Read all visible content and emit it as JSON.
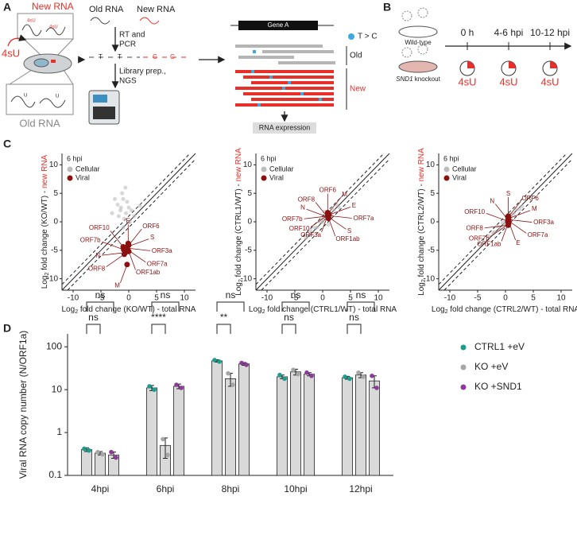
{
  "panel_labels": [
    "A",
    "B",
    "C",
    "D"
  ],
  "panel_a": {
    "new_rna": "New RNA",
    "metabolic_label": "4sU",
    "inset_marks": [
      "4sU",
      "4sU",
      "U",
      "U"
    ],
    "old_rna": "Old RNA",
    "top_old": "Old RNA",
    "top_new": "New RNA",
    "step1": [
      "RT and",
      "PCR"
    ],
    "step2": [
      "Library prep.,",
      "NGS"
    ],
    "seq_old": "T",
    "seq_new": "C",
    "gene": "Gene A",
    "mutation_legend": "T > C",
    "read_groups": [
      "Old",
      "New"
    ],
    "output": "RNA expression"
  },
  "panel_b": {
    "conditions": [
      {
        "label": "Wild-type"
      },
      {
        "gene": "SND1",
        "label": "knockout"
      }
    ],
    "timepoints": [
      "0 h",
      "4-6 hpi",
      "10-12 hpi"
    ],
    "pulse": "4sU"
  },
  "chart_data": [
    {
      "type": "scatter",
      "title": "6 hpi",
      "xlabel": {
        "base": "Log",
        "sub": "2",
        "text": " fold change (KO/WT) - total RNA"
      },
      "ylabel": {
        "base": "Log",
        "sub": "2",
        "text": " fold change (KO/WT) - ",
        "highlight": "new RNA",
        "highlight_color": "#e8302a"
      },
      "xlim": [
        -12,
        12
      ],
      "ylim": [
        -12,
        12
      ],
      "xticks": [
        -10,
        -5,
        0,
        5,
        10
      ],
      "yticks": [
        -10,
        -5,
        0,
        5,
        10
      ],
      "diagonal": true,
      "band_offset": 1,
      "legend": "top-left",
      "series": [
        {
          "name": "Cellular",
          "color": "#bdbdbd",
          "x": [
            -2,
            -1.5,
            -1,
            -0.5,
            0,
            -1.2,
            -0.8,
            -1.8,
            -0.3,
            0.5,
            -2.5,
            -1,
            1,
            -0.6,
            -1.4,
            0.2,
            -3,
            2
          ],
          "values": [
            3,
            2,
            4,
            1.5,
            2.5,
            5,
            0.5,
            1,
            3.5,
            2,
            4,
            -1,
            1,
            6,
            2.5,
            0,
            1.5,
            2.8
          ]
        },
        {
          "name": "Viral",
          "color": "#8b1010",
          "x": [
            -0.1,
            0,
            -0.3,
            -0.4,
            -0.2,
            0,
            -0.3,
            -0.8,
            -0.6,
            -0.9,
            -1
          ],
          "values": [
            -3.8,
            -4.1,
            -4.4,
            -4.6,
            -4.9,
            -5.2,
            -7.5,
            -5.7,
            -5.4,
            -4.9,
            -4.4
          ],
          "point_labels": [
            "E",
            "ORF6",
            "S",
            "ORF3a",
            "ORF7a",
            "ORF1ab",
            "M",
            "ORF8",
            "N",
            "ORF7b",
            "ORF10"
          ]
        }
      ]
    },
    {
      "type": "scatter",
      "title": "6 hpi",
      "xlabel": {
        "base": "Log",
        "sub": "2",
        "text": " fold change (CTRL1/WT) - total RNA"
      },
      "ylabel": {
        "base": "Log",
        "sub": "2",
        "text": " fold change (CTRL1/WT) - ",
        "highlight": "new RNA",
        "highlight_color": "#e8302a"
      },
      "xlim": [
        -12,
        12
      ],
      "ylim": [
        -12,
        12
      ],
      "xticks": [
        -10,
        -5,
        0,
        5,
        10
      ],
      "yticks": [
        -10,
        -5,
        0,
        5,
        10
      ],
      "diagonal": true,
      "band_offset": 1,
      "legend": "top-left",
      "series": [
        {
          "name": "Cellular",
          "color": "#bdbdbd",
          "x": [
            -2,
            -1,
            0,
            1,
            2,
            -1.5,
            0.5,
            1.5,
            -0.5,
            3,
            -3,
            0,
            1,
            2.5,
            -2.2,
            0.3
          ],
          "values": [
            -2,
            -1,
            0,
            1,
            2,
            -1,
            0.8,
            1.2,
            0,
            2.5,
            -2.8,
            0.5,
            -0.5,
            3,
            -1.5,
            1.8
          ]
        },
        {
          "name": "Viral",
          "color": "#8b1010",
          "x": [
            0.9,
            1,
            1.1,
            1,
            0.95,
            1.05,
            1,
            1.1,
            0.9,
            1,
            1.05
          ],
          "values": [
            1.6,
            1.5,
            1.2,
            1.1,
            0.9,
            0.7,
            1.4,
            1.3,
            1,
            0.8,
            0.6
          ],
          "point_labels": [
            "ORF6",
            "M",
            "E",
            "ORF7a",
            "S",
            "ORF1ab",
            "ORF3a",
            "ORF10",
            "ORF7b",
            "N",
            "ORF8"
          ]
        }
      ]
    },
    {
      "type": "scatter",
      "title": "6 hpi",
      "xlabel": {
        "base": "Log",
        "sub": "2",
        "text": " fold change (CTRL2/WT) - total RNA"
      },
      "ylabel": {
        "base": "Log",
        "sub": "2",
        "text": " fold change (CTRL2/WT) - ",
        "highlight": "new RNA",
        "highlight_color": "#e8302a"
      },
      "xlim": [
        -12,
        12
      ],
      "ylim": [
        -12,
        12
      ],
      "xticks": [
        -10,
        -5,
        0,
        5,
        10
      ],
      "yticks": [
        -10,
        -5,
        0,
        5,
        10
      ],
      "diagonal": true,
      "band_offset": 1,
      "legend": "top-left",
      "series": [
        {
          "name": "Cellular",
          "color": "#bdbdbd",
          "x": [
            -2,
            -1,
            0,
            1,
            2,
            -1.5,
            0.5,
            1.5,
            -0.5,
            3,
            -3,
            0,
            1,
            2.5,
            -2.2,
            0.3
          ],
          "values": [
            -1.8,
            -1.2,
            0.2,
            0.8,
            2.2,
            -0.8,
            0.6,
            1.4,
            -0.2,
            2.7,
            -2.5,
            -0.4,
            1.3,
            2.2,
            -2,
            0.9
          ]
        },
        {
          "name": "Viral",
          "color": "#8b1010",
          "x": [
            0.5,
            0.45,
            0.55,
            0.5,
            0.5,
            0.6,
            0.5,
            0.55,
            0.5,
            0.45,
            0.5
          ],
          "values": [
            1,
            0.8,
            0.6,
            0.4,
            0.2,
            0,
            -0.2,
            -0.4,
            -0.6,
            0.1,
            0.3
          ],
          "point_labels": [
            "S",
            "ORF6",
            "M",
            "ORF3a",
            "ORF7a",
            "E",
            "ORF1ab",
            "ORF7b",
            "ORF8",
            "ORF10",
            "N"
          ]
        }
      ]
    },
    {
      "type": "bar",
      "ylabel": "Viral RNA copy number (N/ORF1a)",
      "categories": [
        "4hpi",
        "6hpi",
        "8hpi",
        "10hpi",
        "12hpi"
      ],
      "log_scale": true,
      "ylim": [
        0.1,
        200
      ],
      "yticks": [
        0.1,
        1,
        10,
        100
      ],
      "bar_fill": "#d9d9d9",
      "legend": "right",
      "series": [
        {
          "name": "CTRL1 +eV",
          "color": "#1b9e8a",
          "values": [
            0.4,
            11,
            47,
            20,
            19
          ],
          "errors": [
            0.04,
            1.5,
            3,
            2,
            1.5
          ],
          "replicates": [
            [
              0.42,
              0.38
            ],
            [
              12,
              10
            ],
            [
              49,
              45
            ],
            [
              22,
              18
            ],
            [
              20,
              18
            ]
          ]
        },
        {
          "name": "KO +eV",
          "color": "#a6a6a6",
          "values": [
            0.33,
            0.5,
            18,
            26,
            22
          ],
          "errors": [
            0.03,
            0.25,
            6,
            4,
            3
          ],
          "replicates": [
            [
              0.35,
              0.31
            ],
            [
              0.7,
              0.3
            ],
            [
              24,
              13
            ],
            [
              29,
              23
            ],
            [
              25,
              20
            ]
          ]
        },
        {
          "name": "KO +SND1",
          "color": "#8e3a9d",
          "values": [
            0.3,
            12,
            40,
            23,
            16
          ],
          "errors": [
            0.05,
            1.5,
            3,
            2,
            5
          ],
          "replicates": [
            [
              0.35,
              0.26
            ],
            [
              13,
              11
            ],
            [
              42,
              38
            ],
            [
              25,
              21
            ],
            [
              21,
              11
            ]
          ]
        }
      ],
      "significance_near": [
        "ns",
        "****",
        "**",
        "ns",
        "ns"
      ],
      "significance_far": [
        "ns",
        "ns",
        "ns",
        "ns",
        "ns"
      ]
    }
  ]
}
